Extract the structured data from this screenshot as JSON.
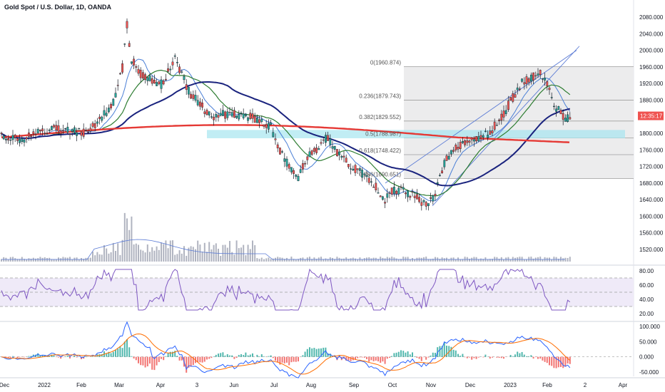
{
  "chart_data": {
    "type": "candlestick",
    "title": "Gold Spot / U.S. Dollar, 1D, OANDA",
    "colors": {
      "up": "#26a69a",
      "down": "#ef5350",
      "wick": "#131722",
      "ma_fast": "#4a7fd6",
      "ma_mid": "#2e7d32",
      "ma_slow": "#1a237e",
      "ma_long": "#e53935",
      "volume": "#b0b4c0",
      "fib_zone": "#e6e6e6",
      "highlight_zone": "#a7e5ef",
      "rsi_line": "#7e57c2",
      "macd_line": "#2962ff",
      "signal_line": "#ff6d00",
      "price_badge": "#ef5350"
    },
    "price_axis": {
      "ticks": [
        "2080.000",
        "2040.000",
        "2000.000",
        "1960.000",
        "1920.000",
        "1880.000",
        "1840.000",
        "1800.000",
        "1760.000",
        "1720.000",
        "1680.000",
        "1640.000",
        "1600.000",
        "1560.000",
        "1520.000"
      ],
      "range": [
        1500,
        2100
      ]
    },
    "current_price_label": "12:35:17",
    "x_axis": {
      "ticks": [
        "Dec",
        "2022",
        "Feb",
        "Mar",
        "Apr",
        "3",
        "Jun",
        "Jul",
        "Aug",
        "Sep",
        "Oct",
        "Nov",
        "Dec",
        "2023",
        "Feb",
        "2",
        "Apr"
      ]
    },
    "fib_levels": [
      {
        "label": "0(1960.874)",
        "price": 1960.874
      },
      {
        "label": "0.236(1879.743)",
        "price": 1879.743
      },
      {
        "label": "0.382(1829.552)",
        "price": 1829.552
      },
      {
        "label": "0.5(1788.987)",
        "price": 1788.987
      },
      {
        "label": "0.618(1748.422)",
        "price": 1748.422
      },
      {
        "label": "0.786(1690.651)",
        "price": 1690.651
      }
    ],
    "rsi": {
      "ticks": [
        "80.00",
        "60.00",
        "40.00",
        "20.00"
      ],
      "range": [
        20,
        80
      ],
      "band": [
        30,
        70
      ]
    },
    "macd": {
      "ticks": [
        "100.000",
        "50.000",
        "0.000",
        "-50.000"
      ],
      "range": [
        -50,
        100
      ]
    }
  }
}
